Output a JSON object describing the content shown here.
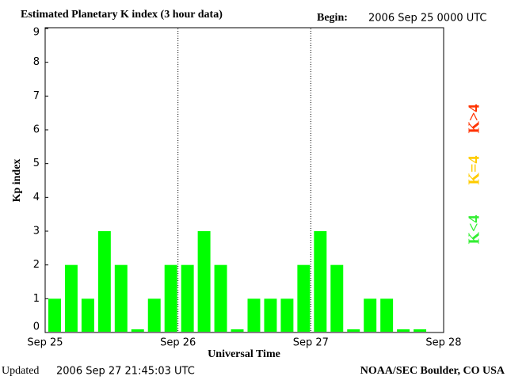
{
  "chart_data": {
    "type": "bar",
    "title": "Estimated Planetary K index (3 hour data)",
    "begin_label": "Begin:",
    "begin": "2006 Sep 25 0000 UTC",
    "updated_label": "Updated",
    "updated": "2006 Sep 27 21:45:03 UTC",
    "source": "NOAA/SEC Boulder, CO USA",
    "xlabel": "Universal Time",
    "ylabel": "Kp index",
    "x": [
      0,
      3,
      6,
      9,
      12,
      15,
      18,
      21,
      24,
      27,
      30,
      33,
      36,
      39,
      42,
      45,
      48,
      51,
      54,
      57,
      60,
      63,
      66
    ],
    "values": [
      1,
      2,
      1,
      3,
      2,
      0,
      1,
      2,
      2,
      3,
      2,
      0,
      1,
      1,
      1,
      2,
      3,
      2,
      0,
      1,
      1,
      0,
      0
    ],
    "color": "#00ff00",
    "xlim": [
      0,
      72
    ],
    "xticks": [
      {
        "value": 0,
        "label": "Sep 25"
      },
      {
        "value": 24,
        "label": "Sep 26"
      },
      {
        "value": 48,
        "label": "Sep 27"
      },
      {
        "value": 72,
        "label": "Sep 28"
      }
    ],
    "ylim": [
      0,
      9
    ],
    "yticks": [
      0,
      1,
      2,
      3,
      4,
      5,
      6,
      7,
      8,
      9
    ],
    "legend": [
      {
        "label": "K<4",
        "color": "#33ee33"
      },
      {
        "label": "K=4",
        "color": "#ffcc00"
      },
      {
        "label": "K>4",
        "color": "#ff3300"
      }
    ]
  }
}
